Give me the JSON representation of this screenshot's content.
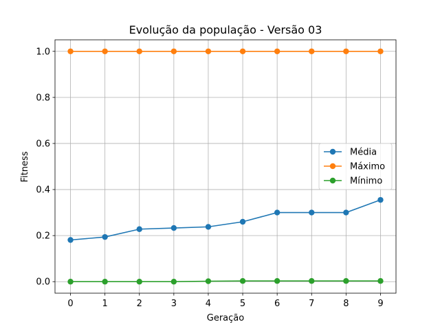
{
  "chart_data": {
    "type": "line",
    "title": "Evolução da população - Versão 03",
    "xlabel": "Geração",
    "ylabel": "Fitness",
    "x": [
      0,
      1,
      2,
      3,
      4,
      5,
      6,
      7,
      8,
      9
    ],
    "xticks": [
      "0",
      "1",
      "2",
      "3",
      "4",
      "5",
      "6",
      "7",
      "8",
      "9"
    ],
    "yticks": [
      "0.0",
      "0.2",
      "0.4",
      "0.6",
      "0.8",
      "1.0"
    ],
    "xlim": [
      -0.45,
      9.45
    ],
    "ylim": [
      -0.05,
      1.05
    ],
    "grid": true,
    "legend_position": "center-right",
    "series": [
      {
        "name": "Média",
        "color": "#1f77b4",
        "marker": "circle",
        "values": [
          0.181,
          0.194,
          0.228,
          0.233,
          0.238,
          0.26,
          0.3,
          0.3,
          0.3,
          0.355
        ]
      },
      {
        "name": "Máximo",
        "color": "#ff7f0e",
        "marker": "circle",
        "values": [
          1.0,
          1.0,
          1.0,
          1.0,
          1.0,
          1.0,
          1.0,
          1.0,
          1.0,
          1.0
        ]
      },
      {
        "name": "Mínimo",
        "color": "#2ca02c",
        "marker": "circle",
        "values": [
          0.0,
          0.0,
          0.0,
          0.0,
          0.002,
          0.003,
          0.003,
          0.003,
          0.003,
          0.003
        ]
      }
    ]
  }
}
